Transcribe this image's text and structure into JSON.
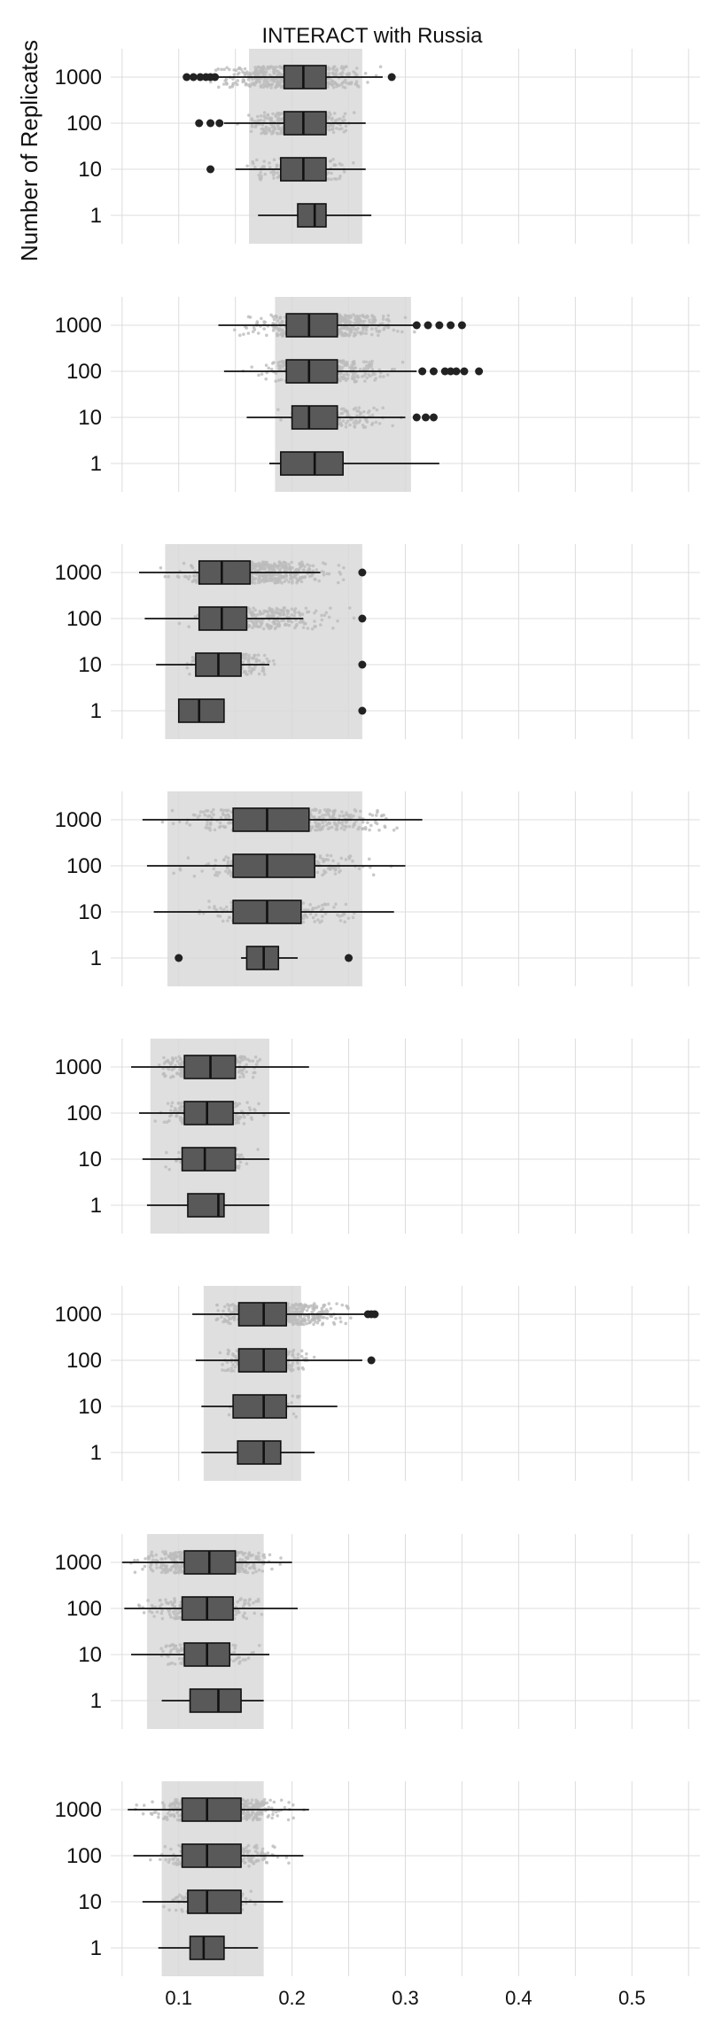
{
  "chart_data": {
    "type": "box",
    "title": "INTERACT with Russia",
    "ylabel": "Number of Replicates",
    "xlabel": "",
    "xlim": [
      0.04,
      0.56
    ],
    "x_ticks": [
      "0.1",
      "0.2",
      "0.3",
      "0.4",
      "0.5"
    ],
    "x_tick_values": [
      0.1,
      0.2,
      0.3,
      0.4,
      0.5
    ],
    "y_categories": [
      "1000",
      "100",
      "10",
      "1"
    ],
    "grid": true,
    "colors": {
      "band": "#d9d9d9",
      "points": "#bcbcbc",
      "box": "#595959",
      "outlier": "#222222",
      "grid": "#dcdcdc"
    },
    "panels": [
      {
        "band": [
          0.162,
          0.262
        ],
        "rows": [
          {
            "rep": "1000",
            "wl": 0.135,
            "q1": 0.193,
            "med": 0.21,
            "q3": 0.23,
            "wh": 0.28,
            "cloud": [
              0.115,
              0.285
            ],
            "outliers": [
              0.107,
              0.113,
              0.119,
              0.124,
              0.128,
              0.132,
              0.288
            ]
          },
          {
            "rep": "100",
            "wl": 0.14,
            "q1": 0.193,
            "med": 0.21,
            "q3": 0.23,
            "wh": 0.265,
            "cloud": [
              0.14,
              0.265
            ],
            "outliers": [
              0.118,
              0.128,
              0.136
            ]
          },
          {
            "rep": "10",
            "wl": 0.15,
            "q1": 0.19,
            "med": 0.21,
            "q3": 0.23,
            "wh": 0.265,
            "cloud": [
              0.15,
              0.265
            ],
            "outliers": [
              0.128
            ]
          },
          {
            "rep": "1",
            "wl": 0.17,
            "q1": 0.205,
            "med": 0.22,
            "q3": 0.23,
            "wh": 0.27,
            "cloud": [],
            "outliers": []
          }
        ]
      },
      {
        "band": [
          0.185,
          0.305
        ],
        "rows": [
          {
            "rep": "1000",
            "wl": 0.135,
            "q1": 0.195,
            "med": 0.215,
            "q3": 0.24,
            "wh": 0.31,
            "cloud": [
              0.14,
              0.315
            ],
            "outliers": [
              0.31,
              0.32,
              0.33,
              0.34,
              0.35
            ]
          },
          {
            "rep": "100",
            "wl": 0.14,
            "q1": 0.195,
            "med": 0.215,
            "q3": 0.24,
            "wh": 0.31,
            "cloud": [
              0.15,
              0.31
            ],
            "outliers": [
              0.315,
              0.325,
              0.335,
              0.34,
              0.345,
              0.352,
              0.365
            ]
          },
          {
            "rep": "10",
            "wl": 0.16,
            "q1": 0.2,
            "med": 0.215,
            "q3": 0.24,
            "wh": 0.3,
            "cloud": [
              0.17,
              0.3
            ],
            "outliers": [
              0.31,
              0.318,
              0.325
            ]
          },
          {
            "rep": "1",
            "wl": 0.18,
            "q1": 0.19,
            "med": 0.22,
            "q3": 0.245,
            "wh": 0.33,
            "cloud": [],
            "outliers": []
          }
        ]
      },
      {
        "band": [
          0.088,
          0.262
        ],
        "rows": [
          {
            "rep": "1000",
            "wl": 0.065,
            "q1": 0.118,
            "med": 0.138,
            "q3": 0.163,
            "wh": 0.225,
            "cloud": [
              0.075,
              0.262
            ],
            "outliers": [
              0.262
            ]
          },
          {
            "rep": "100",
            "wl": 0.07,
            "q1": 0.118,
            "med": 0.138,
            "q3": 0.16,
            "wh": 0.21,
            "cloud": [
              0.08,
              0.262
            ],
            "outliers": [
              0.262
            ]
          },
          {
            "rep": "10",
            "wl": 0.08,
            "q1": 0.115,
            "med": 0.135,
            "q3": 0.155,
            "wh": 0.18,
            "cloud": [
              0.09,
              0.2
            ],
            "outliers": [
              0.262
            ]
          },
          {
            "rep": "1",
            "wl": 0.1,
            "q1": 0.1,
            "med": 0.118,
            "q3": 0.14,
            "wh": 0.14,
            "cloud": [],
            "outliers": [
              0.262
            ]
          }
        ]
      },
      {
        "band": [
          0.09,
          0.262
        ],
        "rows": [
          {
            "rep": "1000",
            "wl": 0.068,
            "q1": 0.148,
            "med": 0.178,
            "q3": 0.215,
            "wh": 0.315,
            "cloud": [
              0.08,
              0.31
            ],
            "outliers": []
          },
          {
            "rep": "100",
            "wl": 0.072,
            "q1": 0.148,
            "med": 0.178,
            "q3": 0.22,
            "wh": 0.3,
            "cloud": [
              0.085,
              0.3
            ],
            "outliers": []
          },
          {
            "rep": "10",
            "wl": 0.078,
            "q1": 0.148,
            "med": 0.178,
            "q3": 0.208,
            "wh": 0.29,
            "cloud": [
              0.095,
              0.28
            ],
            "outliers": []
          },
          {
            "rep": "1",
            "wl": 0.155,
            "q1": 0.16,
            "med": 0.175,
            "q3": 0.188,
            "wh": 0.205,
            "cloud": [],
            "outliers": [
              0.1,
              0.25
            ]
          }
        ]
      },
      {
        "band": [
          0.075,
          0.18
        ],
        "rows": [
          {
            "rep": "1000",
            "wl": 0.058,
            "q1": 0.105,
            "med": 0.128,
            "q3": 0.15,
            "wh": 0.215,
            "cloud": [
              0.075,
              0.18
            ],
            "outliers": []
          },
          {
            "rep": "100",
            "wl": 0.065,
            "q1": 0.105,
            "med": 0.125,
            "q3": 0.148,
            "wh": 0.198,
            "cloud": [
              0.075,
              0.18
            ],
            "outliers": []
          },
          {
            "rep": "10",
            "wl": 0.068,
            "q1": 0.103,
            "med": 0.123,
            "q3": 0.15,
            "wh": 0.18,
            "cloud": [
              0.08,
              0.175
            ],
            "outliers": []
          },
          {
            "rep": "1",
            "wl": 0.072,
            "q1": 0.108,
            "med": 0.135,
            "q3": 0.14,
            "wh": 0.18,
            "cloud": [],
            "outliers": []
          }
        ]
      },
      {
        "band": [
          0.122,
          0.208
        ],
        "rows": [
          {
            "rep": "1000",
            "wl": 0.112,
            "q1": 0.153,
            "med": 0.175,
            "q3": 0.195,
            "wh": 0.27,
            "cloud": [
              0.115,
              0.265
            ],
            "outliers": [
              0.267,
              0.27,
              0.273
            ]
          },
          {
            "rep": "100",
            "wl": 0.115,
            "q1": 0.153,
            "med": 0.175,
            "q3": 0.195,
            "wh": 0.262,
            "cloud": [
              0.125,
              0.225
            ],
            "outliers": [
              0.27
            ]
          },
          {
            "rep": "10",
            "wl": 0.12,
            "q1": 0.148,
            "med": 0.175,
            "q3": 0.195,
            "wh": 0.24,
            "cloud": [
              0.135,
              0.215
            ],
            "outliers": []
          },
          {
            "rep": "1",
            "wl": 0.12,
            "q1": 0.152,
            "med": 0.175,
            "q3": 0.19,
            "wh": 0.22,
            "cloud": [],
            "outliers": []
          }
        ]
      },
      {
        "band": [
          0.072,
          0.175
        ],
        "rows": [
          {
            "rep": "1000",
            "wl": 0.05,
            "q1": 0.105,
            "med": 0.127,
            "q3": 0.15,
            "wh": 0.2,
            "cloud": [
              0.05,
              0.2
            ],
            "outliers": []
          },
          {
            "rep": "100",
            "wl": 0.052,
            "q1": 0.103,
            "med": 0.125,
            "q3": 0.148,
            "wh": 0.205,
            "cloud": [
              0.055,
              0.19
            ],
            "outliers": []
          },
          {
            "rep": "10",
            "wl": 0.058,
            "q1": 0.105,
            "med": 0.125,
            "q3": 0.145,
            "wh": 0.18,
            "cloud": [
              0.065,
              0.18
            ],
            "outliers": []
          },
          {
            "rep": "1",
            "wl": 0.085,
            "q1": 0.11,
            "med": 0.135,
            "q3": 0.155,
            "wh": 0.175,
            "cloud": [],
            "outliers": []
          }
        ]
      },
      {
        "band": [
          0.085,
          0.175
        ],
        "rows": [
          {
            "rep": "1000",
            "wl": 0.055,
            "q1": 0.103,
            "med": 0.125,
            "q3": 0.155,
            "wh": 0.215,
            "cloud": [
              0.055,
              0.215
            ],
            "outliers": []
          },
          {
            "rep": "100",
            "wl": 0.06,
            "q1": 0.103,
            "med": 0.125,
            "q3": 0.155,
            "wh": 0.21,
            "cloud": [
              0.065,
              0.21
            ],
            "outliers": []
          },
          {
            "rep": "10",
            "wl": 0.068,
            "q1": 0.108,
            "med": 0.125,
            "q3": 0.155,
            "wh": 0.192,
            "cloud": [
              0.075,
              0.18
            ],
            "outliers": []
          },
          {
            "rep": "1",
            "wl": 0.082,
            "q1": 0.11,
            "med": 0.122,
            "q3": 0.14,
            "wh": 0.17,
            "cloud": [],
            "outliers": []
          }
        ]
      }
    ]
  }
}
